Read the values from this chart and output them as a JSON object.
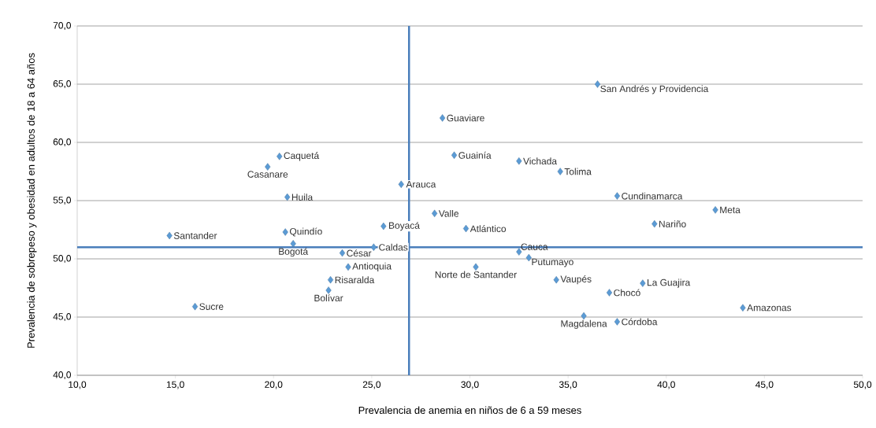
{
  "chart_data": {
    "type": "scatter",
    "xlabel": "Prevalencia de anemia en niños de 6 a 59 meses",
    "ylabel": "Prevalencia de sobrepeso y obesidad en adultos de 18 a 64 años",
    "xlim": [
      10,
      50
    ],
    "ylim": [
      40,
      70
    ],
    "xticks": [
      {
        "value": 10,
        "label": "10,0"
      },
      {
        "value": 15,
        "label": "15,0"
      },
      {
        "value": 20,
        "label": "20,0"
      },
      {
        "value": 25,
        "label": "25,0"
      },
      {
        "value": 30,
        "label": "30,0"
      },
      {
        "value": 35,
        "label": "35,0"
      },
      {
        "value": 40,
        "label": "40,0"
      },
      {
        "value": 45,
        "label": "45,0"
      },
      {
        "value": 50,
        "label": "50,0"
      }
    ],
    "yticks": [
      {
        "value": 40,
        "label": "40,0"
      },
      {
        "value": 45,
        "label": "45,0"
      },
      {
        "value": 50,
        "label": "50,0"
      },
      {
        "value": 55,
        "label": "55,0"
      },
      {
        "value": 60,
        "label": "60,0"
      },
      {
        "value": 65,
        "label": "65,0"
      },
      {
        "value": 70,
        "label": "70,0"
      }
    ],
    "grid": "y",
    "marker": "diamond",
    "series": [
      {
        "color": "#5b9bd5",
        "x": [
          14.7,
          16.0,
          20.3,
          19.7,
          20.7,
          20.6,
          21.0,
          23.5,
          23.8,
          22.9,
          22.8,
          25.6,
          25.1,
          26.5,
          28.2,
          29.8,
          28.6,
          29.2,
          32.5,
          30.3,
          32.5,
          33.0,
          36.5,
          34.6,
          37.5,
          42.5,
          39.4,
          34.4,
          37.1,
          38.8,
          43.9,
          35.8,
          37.5
        ],
        "values": [
          52.0,
          45.9,
          58.8,
          57.9,
          55.3,
          52.3,
          51.3,
          50.5,
          49.3,
          48.2,
          47.3,
          52.8,
          51.0,
          56.4,
          53.9,
          52.6,
          62.1,
          58.9,
          58.4,
          49.3,
          50.6,
          50.1,
          65.0,
          57.5,
          55.4,
          54.2,
          53.0,
          48.2,
          47.1,
          47.9,
          45.8,
          45.1,
          44.6
        ]
      }
    ],
    "ref_lines": [
      {
        "axis": "x",
        "value": 26.9,
        "color": "#4a7ebb"
      },
      {
        "axis": "y",
        "value": 51.0,
        "color": "#4a7ebb"
      }
    ],
    "annotations": [
      {
        "text": "Santander",
        "x": 14.7,
        "y": 52.0
      },
      {
        "text": "Sucre",
        "x": 16.0,
        "y": 45.9
      },
      {
        "text": "Caquetá",
        "x": 20.3,
        "y": 58.8
      },
      {
        "text": "Casanare",
        "x": 19.7,
        "y": 57.9
      },
      {
        "text": "Huila",
        "x": 20.7,
        "y": 55.3
      },
      {
        "text": "Quindío",
        "x": 20.6,
        "y": 52.3
      },
      {
        "text": "Bogotá",
        "x": 21.0,
        "y": 51.3
      },
      {
        "text": "César",
        "x": 23.5,
        "y": 50.5
      },
      {
        "text": "Antioquia",
        "x": 23.8,
        "y": 49.3
      },
      {
        "text": "Risaralda",
        "x": 22.9,
        "y": 48.2
      },
      {
        "text": "Bolívar",
        "x": 22.8,
        "y": 47.3
      },
      {
        "text": "Boyacá",
        "x": 25.6,
        "y": 52.8
      },
      {
        "text": "Caldas",
        "x": 25.1,
        "y": 51.0
      },
      {
        "text": "Arauca",
        "x": 26.5,
        "y": 56.4
      },
      {
        "text": "Valle",
        "x": 28.2,
        "y": 53.9
      },
      {
        "text": "Atlántico",
        "x": 29.8,
        "y": 52.6
      },
      {
        "text": "Guaviare",
        "x": 28.6,
        "y": 62.1
      },
      {
        "text": "Guainía",
        "x": 29.2,
        "y": 58.9
      },
      {
        "text": "Vichada",
        "x": 32.5,
        "y": 58.4
      },
      {
        "text": "Norte de Santander",
        "x": 30.3,
        "y": 49.3
      },
      {
        "text": "Cauca",
        "x": 32.5,
        "y": 50.6
      },
      {
        "text": "Putumayo",
        "x": 33.0,
        "y": 50.1
      },
      {
        "text": "San Andrés y Providencia",
        "x": 36.5,
        "y": 65.0
      },
      {
        "text": "Tolima",
        "x": 34.6,
        "y": 57.5
      },
      {
        "text": "Cundinamarca",
        "x": 37.5,
        "y": 55.4
      },
      {
        "text": "Meta",
        "x": 42.5,
        "y": 54.2
      },
      {
        "text": "Nariño",
        "x": 39.4,
        "y": 53.0
      },
      {
        "text": "Vaupés",
        "x": 34.4,
        "y": 48.2
      },
      {
        "text": "Chocó",
        "x": 37.1,
        "y": 47.1
      },
      {
        "text": "La Guajira",
        "x": 38.8,
        "y": 47.9
      },
      {
        "text": "Amazonas",
        "x": 43.9,
        "y": 45.8
      },
      {
        "text": "Magdalena",
        "x": 35.8,
        "y": 45.1
      },
      {
        "text": "Córdoba",
        "x": 37.5,
        "y": 44.6
      }
    ]
  }
}
